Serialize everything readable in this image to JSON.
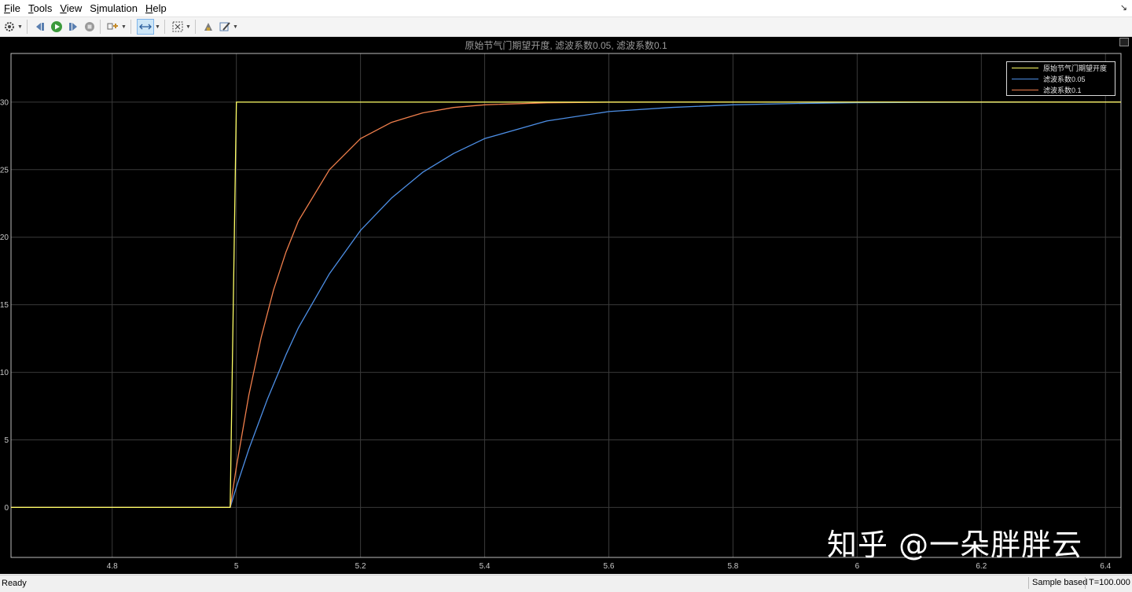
{
  "menu": {
    "items": [
      {
        "label": "File",
        "underline_index": 0
      },
      {
        "label": "Tools",
        "underline_index": 0
      },
      {
        "label": "View",
        "underline_index": 0
      },
      {
        "label": "Simulation",
        "underline_index": 1
      },
      {
        "label": "Help",
        "underline_index": 0
      }
    ]
  },
  "toolbar": {
    "icons": [
      "configuration-gear-icon",
      "step-back-icon",
      "run-icon",
      "step-forward-icon",
      "stop-icon",
      "highlight-block-icon",
      "cursor-measure-icon",
      "zoom-fit-icon",
      "style-icon",
      "edit-icon"
    ]
  },
  "colors": {
    "background": "#000000",
    "grid": "#3a3a3a",
    "axis_text": "#c8c8c8",
    "series_yellow": "#ffff66",
    "series_blue": "#4d8fe6",
    "series_orange": "#f07f4c"
  },
  "chart_data": {
    "type": "line",
    "title": "原始节气门期望开度, 滤波系数0.05, 滤波系数0.1",
    "xlabel": "",
    "ylabel": "",
    "xlim": [
      4.637,
      6.425
    ],
    "ylim": [
      -3.7,
      33.6
    ],
    "xticks": [
      4.8,
      5,
      5.2,
      5.4,
      5.6,
      5.8,
      6,
      6.2,
      6.4
    ],
    "xtick_labels": [
      "4.8",
      "5",
      "5.2",
      "5.4",
      "5.6",
      "5.8",
      "6",
      "6.2",
      "6.4"
    ],
    "yticks": [
      0,
      5,
      10,
      15,
      20,
      25,
      30
    ],
    "ytick_labels": [
      "0",
      "5",
      "10",
      "15",
      "20",
      "25",
      "30"
    ],
    "grid": true,
    "legend_position": "top-right",
    "series": [
      {
        "name": "原始节气门期望开度",
        "color": "#ffff66",
        "x": [
          4.637,
          4.99,
          5.0,
          6.425
        ],
        "y": [
          0,
          0,
          30,
          30
        ]
      },
      {
        "name": "滤波系数0.05",
        "color": "#4d8fe6",
        "x": [
          4.637,
          4.99,
          5.0,
          5.02,
          5.05,
          5.08,
          5.1,
          5.15,
          5.2,
          5.25,
          5.3,
          5.35,
          5.4,
          5.5,
          5.6,
          5.7,
          5.8,
          5.9,
          6.0,
          6.1,
          6.2,
          6.3,
          6.425
        ],
        "y": [
          0,
          0,
          1.5,
          4.3,
          8.0,
          11.3,
          13.3,
          17.3,
          20.5,
          22.9,
          24.8,
          26.2,
          27.3,
          28.6,
          29.3,
          29.6,
          29.8,
          29.9,
          29.96,
          29.98,
          29.99,
          30.0,
          30.0
        ]
      },
      {
        "name": "滤波系数0.1",
        "color": "#f07f4c",
        "x": [
          4.637,
          4.99,
          5.0,
          5.02,
          5.04,
          5.06,
          5.08,
          5.1,
          5.15,
          5.2,
          5.25,
          5.3,
          5.35,
          5.4,
          5.5,
          5.6,
          5.7,
          6.425
        ],
        "y": [
          0,
          0,
          3.0,
          8.3,
          12.6,
          16.1,
          18.9,
          21.2,
          25.0,
          27.3,
          28.5,
          29.2,
          29.6,
          29.8,
          29.95,
          29.99,
          30.0,
          30.0
        ]
      }
    ]
  },
  "watermark": "知乎 @一朵胖胖云",
  "status": {
    "left": "Ready",
    "mode": "Sample based",
    "time": "T=100.000"
  }
}
